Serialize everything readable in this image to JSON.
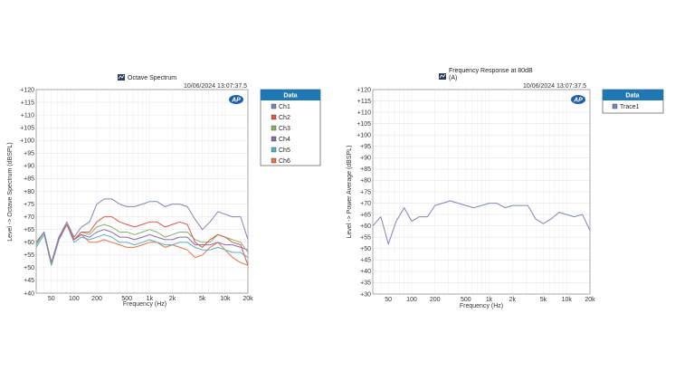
{
  "colors": {
    "ch1": "#7f86b8",
    "ch2": "#d9574f",
    "ch3": "#82b36a",
    "ch4": "#8b6aa8",
    "ch5": "#5aaec0",
    "ch6": "#e8744a",
    "trace1": "#7f86b8",
    "legend_header": "#1f78b4",
    "title_icon": "#2a3d5c"
  },
  "left_panel": {
    "title": "Octave Spectrum",
    "timestamp": "10/06/2024 13:07:37.5",
    "legend_header": "Data",
    "logo": "AP",
    "y_tick_labels": [
      "+120",
      "+115",
      "+110",
      "+105",
      "+100",
      "+95",
      "+90",
      "+85",
      "+80",
      "+75",
      "+70",
      "+65",
      "+60",
      "+55",
      "+50",
      "+45",
      "+40"
    ],
    "x_tick_labels": [
      "50",
      "100",
      "200",
      "500",
      "1k",
      "2k",
      "5k",
      "10k",
      "20k"
    ]
  },
  "right_panel": {
    "title_line1": "Frequency Response at 80dB",
    "title_line2": "(A)",
    "timestamp": "10/06/2024 13:07:37.5",
    "legend_header": "Data",
    "logo": "AP",
    "y_tick_labels": [
      "+120",
      "+115",
      "+110",
      "+105",
      "+100",
      "+95",
      "+90",
      "+85",
      "+80",
      "+75",
      "+70",
      "+65",
      "+60",
      "+55",
      "+50",
      "+45",
      "+40",
      "+35",
      "+30"
    ],
    "x_tick_labels": [
      "50",
      "100",
      "200",
      "500",
      "1k",
      "2k",
      "5k",
      "10k",
      "20k"
    ]
  },
  "chart_data": [
    {
      "type": "line",
      "title": "Octave Spectrum",
      "xlabel": "Frequency (Hz)",
      "ylabel": "Level -> Octave Spectrum (dBSPL)",
      "x_scale": "log",
      "xlim": [
        31.5,
        20000
      ],
      "ylim": [
        40,
        120
      ],
      "grid": true,
      "legend": "right, outside",
      "x": [
        31.5,
        40,
        50,
        63,
        80,
        100,
        125,
        160,
        200,
        250,
        315,
        400,
        500,
        630,
        800,
        1000,
        1250,
        1600,
        2000,
        2500,
        3150,
        4000,
        5000,
        6300,
        8000,
        10000,
        12500,
        16000,
        20000
      ],
      "series": [
        {
          "name": "Ch1",
          "values": [
            60,
            64,
            52,
            62,
            68,
            62,
            66,
            68,
            75,
            77,
            77,
            75,
            74,
            74,
            75,
            76,
            76,
            74,
            75,
            75,
            74,
            69,
            65,
            68,
            72,
            71,
            70,
            70,
            61
          ]
        },
        {
          "name": "Ch2",
          "values": [
            60,
            64,
            52,
            62,
            67,
            61,
            64,
            64,
            68,
            70,
            70,
            68,
            67,
            66,
            67,
            68,
            68,
            66,
            67,
            68,
            67,
            60,
            58,
            61,
            63,
            62,
            60,
            59,
            51
          ]
        },
        {
          "name": "Ch3",
          "values": [
            59,
            64,
            51,
            62,
            67,
            61,
            64,
            63,
            66,
            67,
            66,
            64,
            64,
            63,
            64,
            65,
            64,
            62,
            63,
            64,
            64,
            61,
            60,
            60,
            63,
            62,
            61,
            60,
            56
          ]
        },
        {
          "name": "Ch4",
          "values": [
            59,
            64,
            51,
            61,
            67,
            61,
            63,
            62,
            64,
            65,
            64,
            62,
            62,
            61,
            62,
            63,
            62,
            61,
            61,
            62,
            62,
            59,
            59,
            59,
            60,
            59,
            59,
            58,
            57
          ]
        },
        {
          "name": "Ch5",
          "values": [
            58,
            63,
            51,
            61,
            67,
            60,
            62,
            61,
            62,
            63,
            62,
            60,
            60,
            59,
            60,
            61,
            60,
            59,
            59,
            60,
            60,
            58,
            57,
            57,
            58,
            57,
            56,
            56,
            54
          ]
        },
        {
          "name": "Ch6",
          "values": [
            60,
            64,
            52,
            62,
            67,
            61,
            63,
            60,
            60,
            61,
            60,
            59,
            58,
            58,
            59,
            60,
            60,
            58,
            59,
            58,
            57,
            54,
            55,
            58,
            60,
            57,
            54,
            52,
            51
          ]
        }
      ]
    },
    {
      "type": "line",
      "title": "Frequency Response at 80dB (A)",
      "xlabel": "Frequency (Hz)",
      "ylabel": "Level -> Power Average (dBSPL)",
      "x_scale": "log",
      "xlim": [
        31.5,
        20000
      ],
      "ylim": [
        30,
        120
      ],
      "grid": true,
      "legend": "right, outside",
      "x": [
        31.5,
        40,
        50,
        63,
        80,
        100,
        125,
        160,
        200,
        250,
        315,
        400,
        500,
        630,
        800,
        1000,
        1250,
        1600,
        2000,
        2500,
        3150,
        4000,
        5000,
        6300,
        8000,
        10000,
        12500,
        16000,
        20000
      ],
      "series": [
        {
          "name": "Trace1",
          "values": [
            60,
            64,
            52,
            62,
            68,
            62,
            64,
            64,
            69,
            70,
            71,
            70,
            69,
            68,
            69,
            70,
            70,
            68,
            69,
            69,
            69,
            63,
            61,
            63,
            66,
            65,
            64,
            65,
            58
          ]
        }
      ]
    }
  ]
}
